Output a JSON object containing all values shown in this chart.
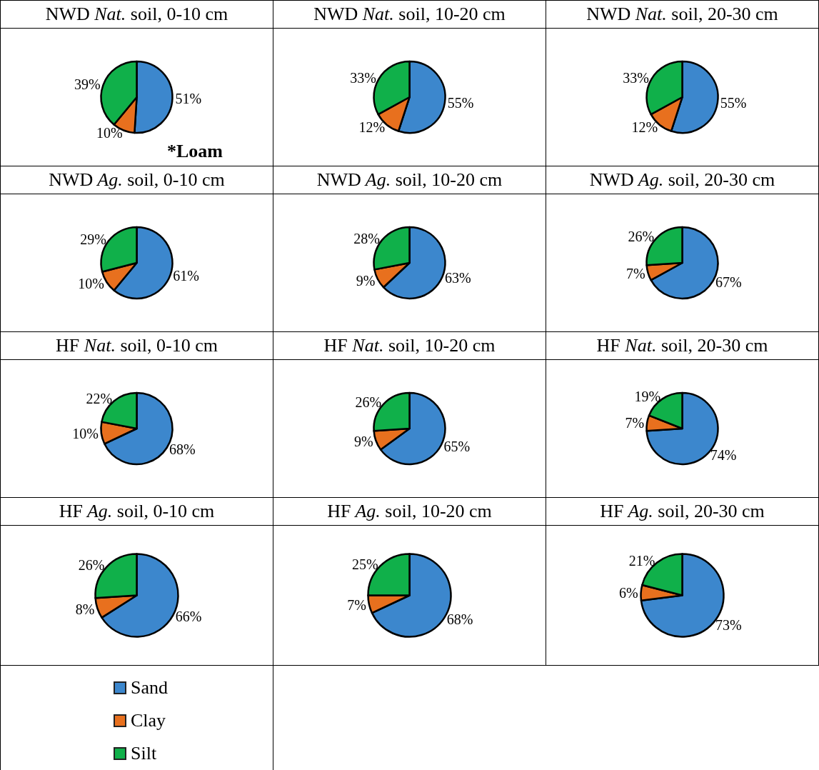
{
  "chart_data": [
    {
      "type": "pie",
      "title": "NWD Nat. soil, 0-10 cm",
      "categories": [
        "Sand",
        "Clay",
        "Silt"
      ],
      "values": [
        51,
        10,
        39
      ],
      "colors": [
        "#3c87cd",
        "#e8701e",
        "#10b04a"
      ],
      "value_labels": [
        "51%",
        "10%",
        "39%"
      ],
      "annotations": [
        "*Loam"
      ],
      "legend": "bottom"
    },
    {
      "type": "pie",
      "title": "NWD Nat. soil, 10-20 cm",
      "categories": [
        null,
        null,
        null
      ],
      "values": [
        55,
        12,
        33
      ],
      "colors": [
        "#3c87cd",
        "#e8701e",
        "#10b04a"
      ],
      "value_labels": [
        "55%",
        "12%",
        "33%"
      ]
    },
    {
      "type": "pie",
      "title": "NWD Nat. soil, 20-30 cm",
      "categories": [
        null,
        null,
        null
      ],
      "values": [
        55,
        12,
        33
      ],
      "colors": [
        "#3c87cd",
        "#e8701e",
        "#10b04a"
      ],
      "value_labels": [
        "55%",
        "12%",
        "33%"
      ]
    },
    {
      "type": "pie",
      "title": "NWD Ag. soil, 0-10 cm",
      "categories": [
        null,
        null,
        null
      ],
      "values": [
        61,
        10,
        29
      ],
      "colors": [
        "#3c87cd",
        "#e8701e",
        "#10b04a"
      ],
      "value_labels": [
        "61%",
        "10%",
        "29%"
      ]
    },
    {
      "type": "pie",
      "title": "NWD Ag. soil, 10-20 cm",
      "categories": [
        null,
        null,
        null
      ],
      "values": [
        63,
        9,
        28
      ],
      "colors": [
        "#3c87cd",
        "#e8701e",
        "#10b04a"
      ],
      "value_labels": [
        "63%",
        "9%",
        "28%"
      ]
    },
    {
      "type": "pie",
      "title": "NWD Ag. soil, 20-30 cm",
      "categories": [
        null,
        null,
        null
      ],
      "values": [
        67,
        7,
        26
      ],
      "colors": [
        "#3c87cd",
        "#e8701e",
        "#10b04a"
      ],
      "value_labels": [
        "67%",
        "7%",
        "26%"
      ]
    },
    {
      "type": "pie",
      "title": "HF Nat. soil, 0-10 cm",
      "categories": [
        null,
        null,
        null
      ],
      "values": [
        68,
        10,
        22
      ],
      "colors": [
        "#3c87cd",
        "#e8701e",
        "#10b04a"
      ],
      "value_labels": [
        "68%",
        "10%",
        "22%"
      ]
    },
    {
      "type": "pie",
      "title": "HF Nat. soil, 10-20 cm",
      "categories": [
        null,
        null,
        null
      ],
      "values": [
        65,
        9,
        26
      ],
      "colors": [
        "#3c87cd",
        "#e8701e",
        "#10b04a"
      ],
      "value_labels": [
        "65%",
        "9%",
        "26%"
      ]
    },
    {
      "type": "pie",
      "title": "HF Nat. soil, 20-30 cm",
      "categories": [
        null,
        null,
        null
      ],
      "values": [
        74,
        7,
        19
      ],
      "colors": [
        "#3c87cd",
        "#e8701e",
        "#10b04a"
      ],
      "value_labels": [
        "74%",
        "7%",
        "19%"
      ]
    },
    {
      "type": "pie",
      "title": "HF Ag. soil, 0-10 cm",
      "categories": [
        null,
        null,
        null
      ],
      "values": [
        66,
        8,
        26
      ],
      "colors": [
        "#3c87cd",
        "#e8701e",
        "#10b04a"
      ],
      "value_labels": [
        "66%",
        "8%",
        "26%"
      ]
    },
    {
      "type": "pie",
      "title": "HF Ag. soil, 10-20 cm",
      "categories": [
        null,
        null,
        null
      ],
      "values": [
        68,
        7,
        25
      ],
      "colors": [
        "#3c87cd",
        "#e8701e",
        "#10b04a"
      ],
      "value_labels": [
        "68%",
        "7%",
        "25%"
      ]
    },
    {
      "type": "pie",
      "title": "HF Ag. soil, 20-30 cm",
      "categories": [
        null,
        null,
        null
      ],
      "values": [
        73,
        6,
        21
      ],
      "colors": [
        "#3c87cd",
        "#e8701e",
        "#10b04a"
      ],
      "value_labels": [
        "73%",
        "6%",
        "21%"
      ]
    }
  ]
}
